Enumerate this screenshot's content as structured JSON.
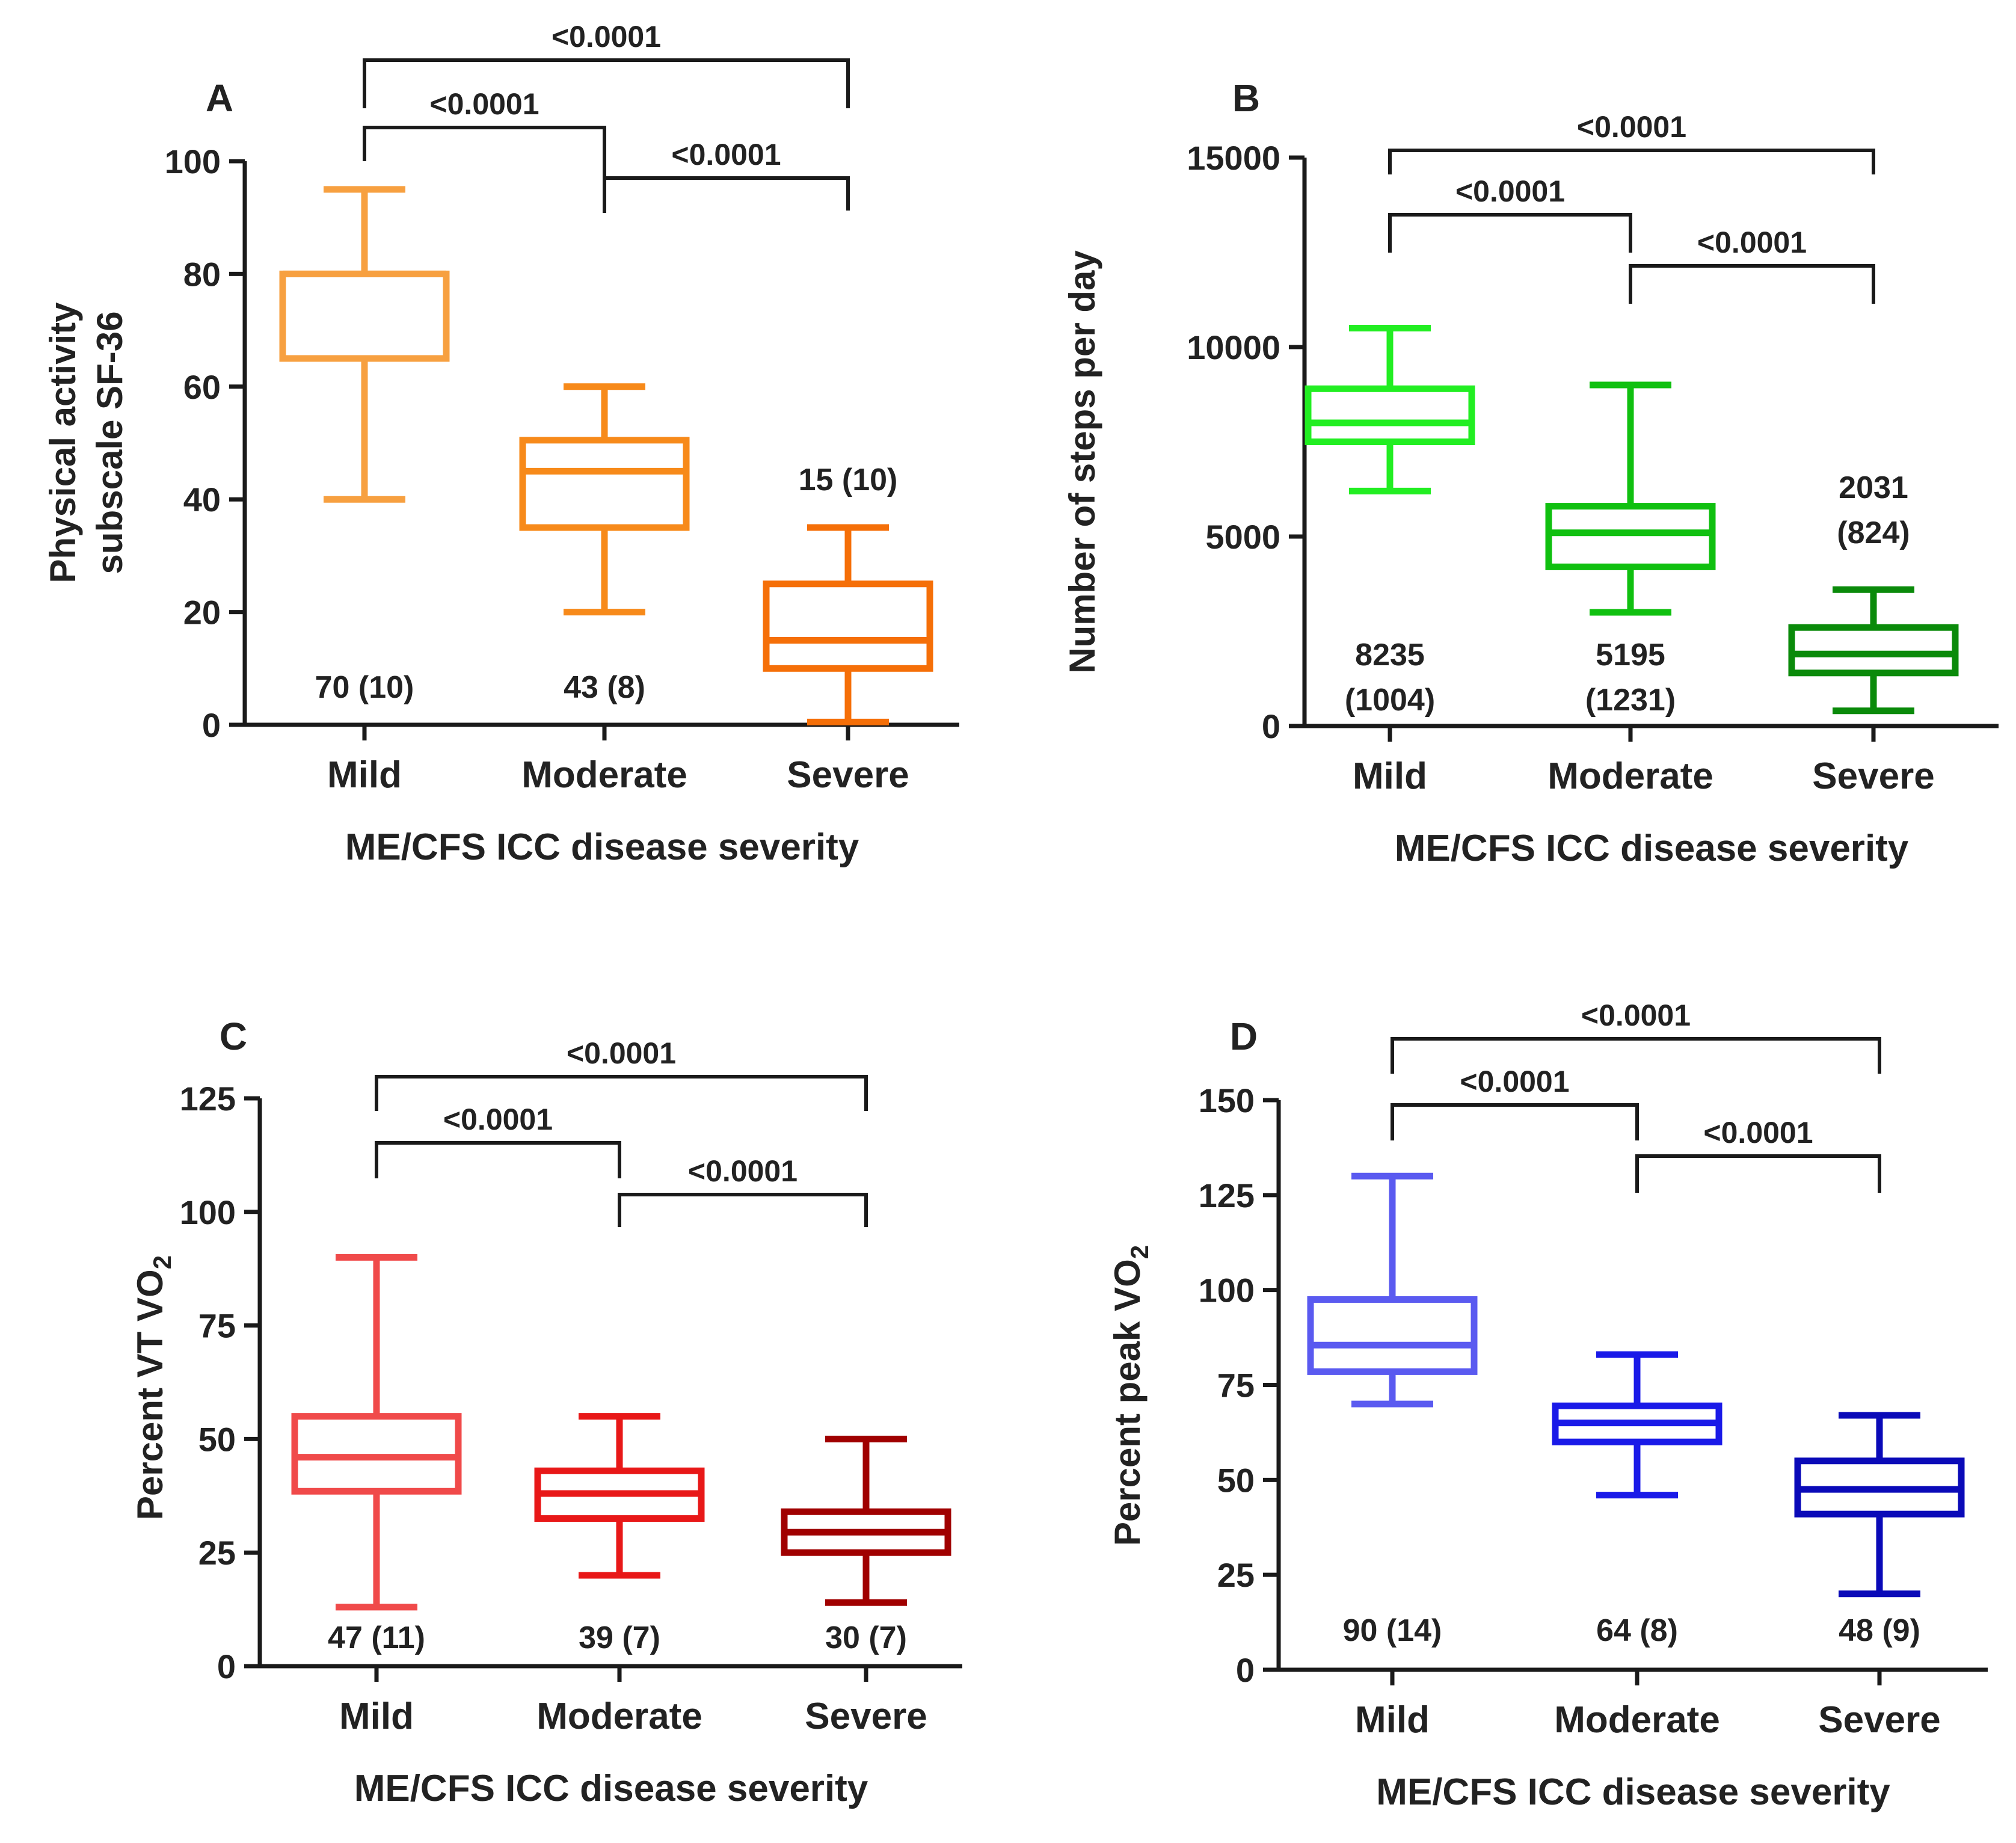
{
  "chart_data": [
    {
      "panel": "A",
      "type": "box",
      "ylabel_lines": [
        "Physical activity",
        "subscale SF-36"
      ],
      "xlabel": "ME/CFS ICC disease severity",
      "categories": [
        "Mild",
        "Moderate",
        "Severe"
      ],
      "ylim": [
        0,
        100
      ],
      "yticks": [
        0,
        20,
        40,
        60,
        80,
        100
      ],
      "ytick_labels": [
        "0",
        "20",
        "40",
        "60",
        "80",
        "100"
      ],
      "series": [
        {
          "category": "Mild",
          "color": "#F7A040",
          "min": 40,
          "q1": 65,
          "median": 80,
          "q3": 80,
          "max": 95
        },
        {
          "category": "Moderate",
          "color": "#F78A1A",
          "min": 20,
          "q1": 35,
          "median": 45,
          "q3": 50.5,
          "max": 60
        },
        {
          "category": "Severe",
          "color": "#F56F08",
          "min": 0.5,
          "q1": 10,
          "median": 15,
          "q3": 25,
          "max": 35
        }
      ],
      "annotations": [
        {
          "category": "Mild",
          "lines": [
            "70 (10)"
          ]
        },
        {
          "category": "Moderate",
          "lines": [
            "43 (8)"
          ]
        },
        {
          "category": "Severe",
          "lines": [
            "15 (10)"
          ]
        }
      ],
      "comparisons": [
        {
          "from": "Mild",
          "to": "Severe",
          "label": "<0.0001"
        },
        {
          "from": "Mild",
          "to": "Moderate",
          "label": "<0.0001"
        },
        {
          "from": "Moderate",
          "to": "Severe",
          "label": "<0.0001"
        }
      ]
    },
    {
      "panel": "B",
      "type": "box",
      "ylabel_lines": [
        "Number of steps per day"
      ],
      "xlabel": "ME/CFS ICC disease severity",
      "categories": [
        "Mild",
        "Moderate",
        "Severe"
      ],
      "ylim": [
        0,
        15000
      ],
      "yticks": [
        0,
        5000,
        10000,
        15000
      ],
      "ytick_labels": [
        "0",
        "5000",
        "10000",
        "15000"
      ],
      "series": [
        {
          "category": "Mild",
          "color": "#22EE22",
          "min": 6200,
          "q1": 7500,
          "median": 8000,
          "q3": 8900,
          "max": 10500
        },
        {
          "category": "Moderate",
          "color": "#10C010",
          "min": 3000,
          "q1": 4200,
          "median": 5100,
          "q3": 5800,
          "max": 9000
        },
        {
          "category": "Severe",
          "color": "#0A8A0A",
          "min": 400,
          "q1": 1400,
          "median": 1900,
          "q3": 2600,
          "max": 3600
        }
      ],
      "annotations": [
        {
          "category": "Mild",
          "lines": [
            "8235",
            "(1004)"
          ]
        },
        {
          "category": "Moderate",
          "lines": [
            "5195",
            "(1231)"
          ]
        },
        {
          "category": "Severe",
          "lines": [
            "2031",
            "(824)"
          ]
        }
      ],
      "comparisons": [
        {
          "from": "Mild",
          "to": "Severe",
          "label": "<0.0001"
        },
        {
          "from": "Mild",
          "to": "Moderate",
          "label": "<0.0001"
        },
        {
          "from": "Moderate",
          "to": "Severe",
          "label": "<0.0001"
        }
      ]
    },
    {
      "panel": "C",
      "type": "box",
      "ylabel_main": "Percent VT VO",
      "ylabel_sub": "2",
      "xlabel": "ME/CFS ICC disease severity",
      "categories": [
        "Mild",
        "Moderate",
        "Severe"
      ],
      "ylim": [
        0,
        125
      ],
      "yticks": [
        0,
        25,
        50,
        75,
        100,
        125
      ],
      "ytick_labels": [
        "0",
        "25",
        "50",
        "75",
        "100",
        "125"
      ],
      "series": [
        {
          "category": "Mild",
          "color": "#F04A4A",
          "min": 13,
          "q1": 38.5,
          "median": 46,
          "q3": 55,
          "max": 90
        },
        {
          "category": "Moderate",
          "color": "#E81818",
          "min": 20,
          "q1": 32.5,
          "median": 38,
          "q3": 43,
          "max": 55
        },
        {
          "category": "Severe",
          "color": "#A00000",
          "min": 14,
          "q1": 25,
          "median": 29.5,
          "q3": 34,
          "max": 50
        }
      ],
      "annotations": [
        {
          "category": "Mild",
          "lines": [
            "47 (11)"
          ]
        },
        {
          "category": "Moderate",
          "lines": [
            "39 (7)"
          ]
        },
        {
          "category": "Severe",
          "lines": [
            "30 (7)"
          ]
        }
      ],
      "comparisons": [
        {
          "from": "Mild",
          "to": "Severe",
          "label": "<0.0001"
        },
        {
          "from": "Mild",
          "to": "Moderate",
          "label": "<0.0001"
        },
        {
          "from": "Moderate",
          "to": "Severe",
          "label": "<0.0001"
        }
      ]
    },
    {
      "panel": "D",
      "type": "box",
      "ylabel_main": "Percent peak VO",
      "ylabel_sub": "2",
      "xlabel": "ME/CFS ICC disease severity",
      "categories": [
        "Mild",
        "Moderate",
        "Severe"
      ],
      "ylim": [
        0,
        150
      ],
      "yticks": [
        0,
        25,
        50,
        75,
        100,
        125,
        150
      ],
      "ytick_labels": [
        "0",
        "25",
        "50",
        "75",
        "100",
        "125",
        "150"
      ],
      "series": [
        {
          "category": "Mild",
          "color": "#5A5AF0",
          "min": 70,
          "q1": 78.5,
          "median": 85.5,
          "q3": 97.5,
          "max": 130
        },
        {
          "category": "Moderate",
          "color": "#1A1AE8",
          "min": 46,
          "q1": 60,
          "median": 65,
          "q3": 69.5,
          "max": 83
        },
        {
          "category": "Severe",
          "color": "#0A0AB8",
          "min": 20,
          "q1": 41,
          "median": 47.5,
          "q3": 55,
          "max": 67
        }
      ],
      "annotations": [
        {
          "category": "Mild",
          "lines": [
            "90 (14)"
          ]
        },
        {
          "category": "Moderate",
          "lines": [
            "64 (8)"
          ]
        },
        {
          "category": "Severe",
          "lines": [
            "48 (9)"
          ]
        }
      ],
      "comparisons": [
        {
          "from": "Mild",
          "to": "Severe",
          "label": "<0.0001"
        },
        {
          "from": "Mild",
          "to": "Moderate",
          "label": "<0.0001"
        },
        {
          "from": "Moderate",
          "to": "Severe",
          "label": "<0.0001"
        }
      ]
    }
  ]
}
